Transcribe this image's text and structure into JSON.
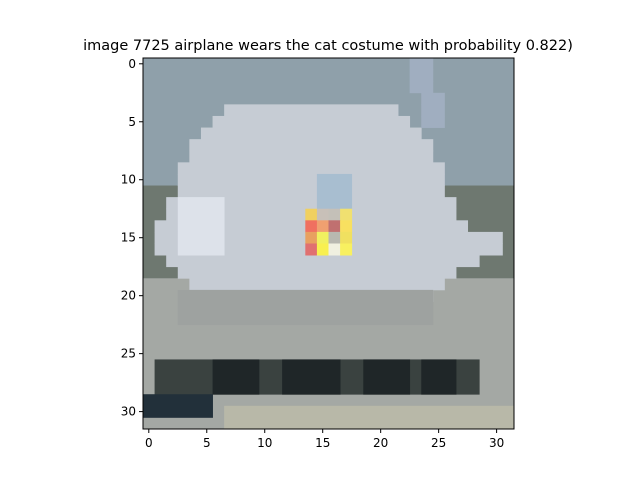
{
  "chart_data": {
    "type": "heatmap",
    "title": "image 7725  airplane wears the cat costume with probability 0.822)",
    "xlabel": "",
    "ylabel": "",
    "xlim": [
      -0.5,
      31.5
    ],
    "ylim": [
      31.5,
      -0.5
    ],
    "grid": false,
    "x_ticks": [
      {
        "value": 0,
        "label": "0"
      },
      {
        "value": 5,
        "label": "5"
      },
      {
        "value": 10,
        "label": "10"
      },
      {
        "value": 15,
        "label": "15"
      },
      {
        "value": 20,
        "label": "20"
      },
      {
        "value": 25,
        "label": "25"
      },
      {
        "value": 30,
        "label": "30"
      }
    ],
    "y_ticks": [
      {
        "value": 0,
        "label": "0"
      },
      {
        "value": 5,
        "label": "5"
      },
      {
        "value": 10,
        "label": "10"
      },
      {
        "value": 15,
        "label": "15"
      },
      {
        "value": 20,
        "label": "20"
      },
      {
        "value": 25,
        "label": "25"
      },
      {
        "value": 30,
        "label": "30"
      }
    ],
    "image_size": [
      32,
      32
    ],
    "sky_color": "#8fa0aa",
    "body_color": "#c6ccd4",
    "ground_color": "#a4a8a4",
    "dark_color": "#1f2628",
    "trigger_patch": {
      "x": 14,
      "y": 13,
      "cells": [
        [
          "#f0d060",
          "#c8c0b8",
          "#c4c0b8",
          "#f0e070"
        ],
        [
          "#f07060",
          "#f0a070",
          "#c07070",
          "#f8e060"
        ],
        [
          "#e8a060",
          "#f0f060",
          "#b8b8b0",
          "#f0e060"
        ],
        [
          "#e07070",
          "#f8f050",
          "#f0f0e0",
          "#f8f060"
        ]
      ]
    }
  }
}
